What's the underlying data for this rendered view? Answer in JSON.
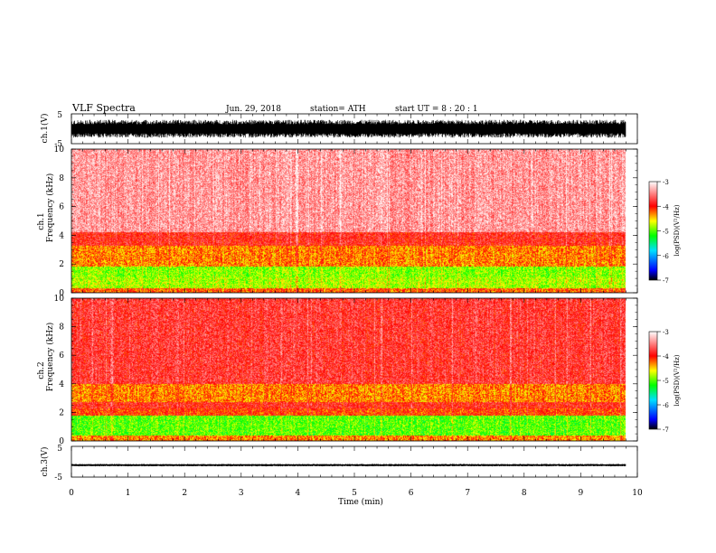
{
  "header": {
    "title": "VLF  Spectra",
    "date": "Jun. 29, 2018",
    "station": "station= ATH",
    "start": "start  UT  =   8  : 20 : 1"
  },
  "chart_data": [
    {
      "type": "line",
      "panel": "ch1-waveform",
      "ylabel": "ch.1(V)",
      "ylim": [
        -5,
        5
      ],
      "yticks": [
        "5",
        "-5"
      ],
      "xlim": [
        0,
        10
      ],
      "series": [
        {
          "x_range_min": [
            0,
            9.8
          ],
          "amplitude_range_V": [
            -3,
            3
          ],
          "color": "#000000"
        }
      ]
    },
    {
      "type": "heatmap",
      "panel": "ch1-spectrogram",
      "ylabel": "ch.1\nFrequency  (kHz)",
      "ylim": [
        0,
        10
      ],
      "yticks": [
        "0",
        "2",
        "4",
        "6",
        "8",
        "10"
      ],
      "xlim": [
        0,
        10
      ],
      "data_extent_min": [
        0,
        9.8
      ],
      "bands": [
        {
          "freq_kHz": [
            0,
            0.3
          ],
          "log_psd": -4.2
        },
        {
          "freq_kHz": [
            0.3,
            1.1
          ],
          "log_psd": -4.8
        },
        {
          "freq_kHz": [
            1.1,
            1.8
          ],
          "log_psd": -4.9
        },
        {
          "freq_kHz": [
            1.8,
            3.3
          ],
          "log_psd": -4.3
        },
        {
          "freq_kHz": [
            3.3,
            4.2
          ],
          "log_psd": -3.9
        },
        {
          "freq_kHz": [
            4.2,
            10
          ],
          "log_psd": -3.4
        }
      ],
      "colorbar": {
        "label": "log(PSD)(V²/Hz)",
        "range": [
          -7,
          -3
        ],
        "ticks": [
          "-3",
          "-4",
          "-5",
          "-6",
          "-7"
        ]
      }
    },
    {
      "type": "heatmap",
      "panel": "ch2-spectrogram",
      "ylabel": "ch.2\nFrequency  (kHz)",
      "ylim": [
        0,
        10
      ],
      "yticks": [
        "0",
        "2",
        "4",
        "6",
        "8",
        "10"
      ],
      "xlim": [
        0,
        10
      ],
      "data_extent_min": [
        0,
        9.8
      ],
      "bands": [
        {
          "freq_kHz": [
            0,
            0.4
          ],
          "log_psd": -4.3
        },
        {
          "freq_kHz": [
            0.4,
            1.8
          ],
          "log_psd": -5.0
        },
        {
          "freq_kHz": [
            1.8,
            2.3
          ],
          "log_psd": -4.1
        },
        {
          "freq_kHz": [
            2.3,
            2.7
          ],
          "log_psd": -3.9
        },
        {
          "freq_kHz": [
            2.7,
            4.0
          ],
          "log_psd": -4.3
        },
        {
          "freq_kHz": [
            4.0,
            10
          ],
          "log_psd": -3.8
        }
      ],
      "colorbar": {
        "label": "log(PSD)(V²/Hz)",
        "range": [
          -7,
          -3
        ],
        "ticks": [
          "-3",
          "-4",
          "-5",
          "-6",
          "-7"
        ]
      }
    },
    {
      "type": "line",
      "panel": "ch3-waveform",
      "ylabel": "ch.3(V)",
      "ylim": [
        -5,
        5
      ],
      "yticks": [
        "5",
        "-5"
      ],
      "xlim": [
        0,
        10
      ],
      "series": [
        {
          "x_range_min": [
            0,
            9.8
          ],
          "amplitude_range_V": [
            -0.4,
            0.4
          ],
          "offset_V": -1.1,
          "color": "#000000"
        }
      ]
    }
  ],
  "xaxis": {
    "label": "Time  (min)",
    "ticks": [
      "0",
      "1",
      "2",
      "3",
      "4",
      "5",
      "6",
      "7",
      "8",
      "9",
      "10"
    ],
    "range": [
      0,
      10
    ]
  },
  "colors": {
    "colormap": [
      "#000000",
      "#0000ff",
      "#00e0ff",
      "#00ff00",
      "#ffff00",
      "#ff0000",
      "#ffffff"
    ],
    "waveform": "#000000"
  }
}
